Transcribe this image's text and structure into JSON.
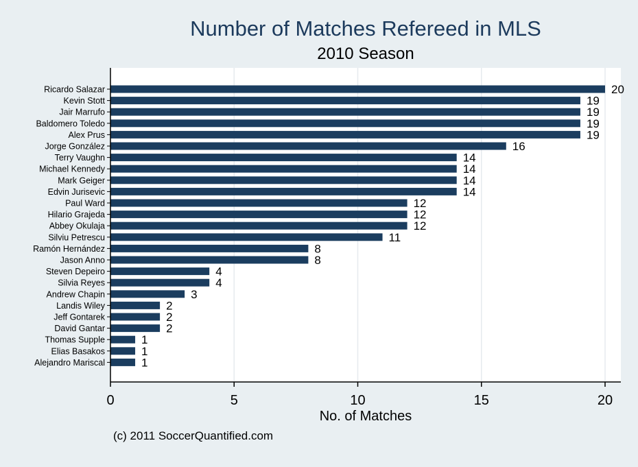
{
  "chart_data": {
    "type": "bar",
    "orientation": "horizontal",
    "title": "Number of Matches Refereed in MLS",
    "subtitle": "2010 Season",
    "xlabel": "No. of Matches",
    "ylabel": "",
    "xlim": [
      0,
      20
    ],
    "xticks": [
      "0",
      "5",
      "10",
      "15",
      "20"
    ],
    "grid": true,
    "bar_color": "#1b3d5f",
    "categories": [
      "Ricardo Salazar",
      "Kevin Stott",
      "Jair Marrufo",
      "Baldomero Toledo",
      "Alex Prus",
      "Jorge González",
      "Terry Vaughn",
      "Michael Kennedy",
      "Mark Geiger",
      "Edvin Jurisevic",
      "Paul Ward",
      "Hilario Grajeda",
      "Abbey Okulaja",
      "Silviu Petrescu",
      "Ramón Hernández",
      "Jason Anno",
      "Steven Depeiro",
      "Silvia Reyes",
      "Andrew Chapin",
      "Landis Wiley",
      "Jeff Gontarek",
      "David Gantar",
      "Thomas Supple",
      "Elias Basakos",
      "Alejandro Mariscal"
    ],
    "values": [
      20,
      19,
      19,
      19,
      19,
      16,
      14,
      14,
      14,
      14,
      12,
      12,
      12,
      11,
      8,
      8,
      4,
      4,
      3,
      2,
      2,
      2,
      1,
      1,
      1
    ]
  },
  "footer": {
    "credit": "(c) 2011 SoccerQuantified.com"
  }
}
